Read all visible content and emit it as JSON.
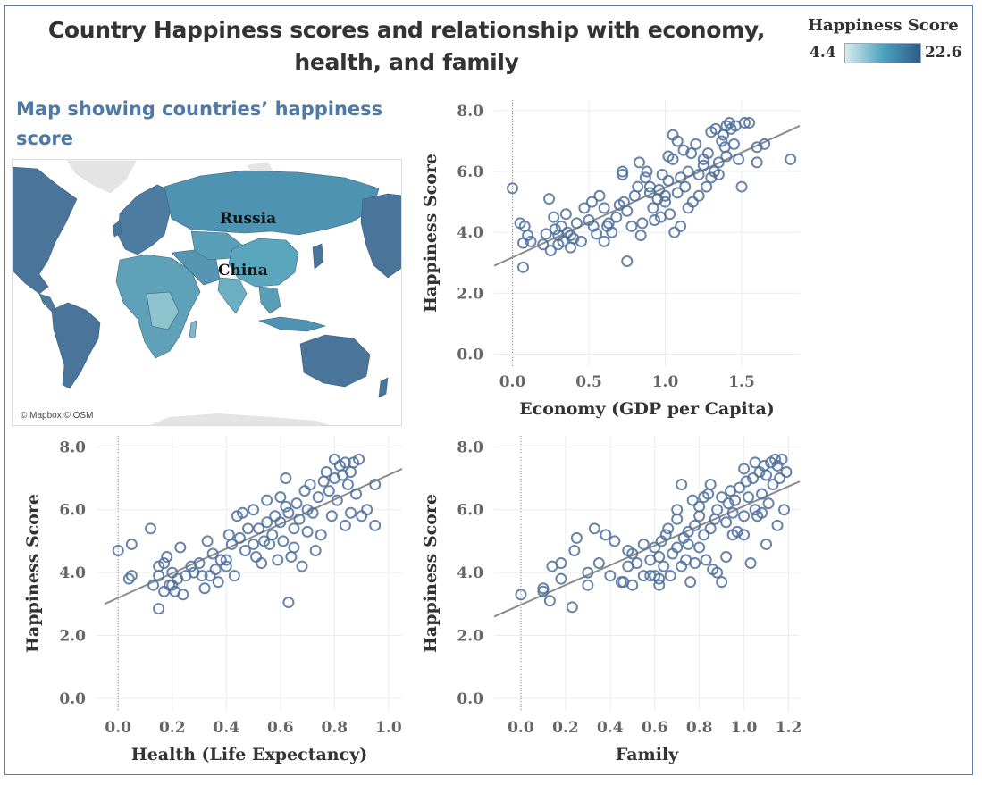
{
  "dashboard": {
    "title": "Country Happiness scores and relationship with economy, health, and family"
  },
  "legend": {
    "title": "Happiness Score",
    "min_label": "4.4",
    "max_label": "22.6",
    "color_low": "#d6ecec",
    "color_mid": "#4ea3bf",
    "color_high": "#2e5a87"
  },
  "map": {
    "title": "Map showing countries’ happiness score",
    "labels": {
      "russia": "Russia",
      "china": "China"
    },
    "credit": "© Mapbox © OSM",
    "land_color": "#4a7499",
    "water_color": "#ffffff",
    "no_data_color": "#e4e4e4"
  },
  "colors": {
    "point_stroke": "#4e6f9c",
    "trend_line": "#8c8c8c",
    "grid": "#ececec",
    "zero_line": "#888888"
  },
  "chart_data": [
    {
      "type": "scatter",
      "id": "economy",
      "xlabel": "Economy (GDP per Capita)",
      "ylabel": "Happiness Score",
      "xlim": [
        -0.12,
        1.88
      ],
      "ylim": [
        -0.4,
        8.35
      ],
      "xticks": [
        0.0,
        0.5,
        1.0,
        1.5
      ],
      "yticks": [
        0.0,
        2.0,
        4.0,
        6.0,
        8.0
      ],
      "xtick_labels": [
        "0.0",
        "0.5",
        "1.0",
        "1.5"
      ],
      "ytick_labels": [
        "0.0",
        "2.0",
        "4.0",
        "6.0",
        "8.0"
      ],
      "trend": [
        [
          -0.12,
          2.9
        ],
        [
          1.88,
          7.5
        ]
      ],
      "points": [
        [
          0.0,
          5.45
        ],
        [
          0.05,
          4.3
        ],
        [
          0.07,
          3.65
        ],
        [
          0.07,
          2.85
        ],
        [
          0.08,
          4.2
        ],
        [
          0.1,
          3.9
        ],
        [
          0.12,
          3.7
        ],
        [
          0.2,
          3.6
        ],
        [
          0.22,
          3.95
        ],
        [
          0.24,
          5.1
        ],
        [
          0.25,
          3.4
        ],
        [
          0.27,
          4.5
        ],
        [
          0.28,
          4.1
        ],
        [
          0.3,
          3.6
        ],
        [
          0.3,
          3.9
        ],
        [
          0.32,
          4.2
        ],
        [
          0.33,
          3.7
        ],
        [
          0.35,
          4.6
        ],
        [
          0.36,
          4.0
        ],
        [
          0.38,
          3.5
        ],
        [
          0.38,
          3.9
        ],
        [
          0.4,
          3.8
        ],
        [
          0.42,
          4.3
        ],
        [
          0.45,
          3.7
        ],
        [
          0.47,
          4.8
        ],
        [
          0.5,
          4.4
        ],
        [
          0.52,
          5.0
        ],
        [
          0.53,
          4.2
        ],
        [
          0.55,
          3.95
        ],
        [
          0.57,
          5.2
        ],
        [
          0.6,
          3.7
        ],
        [
          0.6,
          4.8
        ],
        [
          0.62,
          4.2
        ],
        [
          0.63,
          4.3
        ],
        [
          0.65,
          4.0
        ],
        [
          0.68,
          4.5
        ],
        [
          0.7,
          4.9
        ],
        [
          0.72,
          5.9
        ],
        [
          0.72,
          6.0
        ],
        [
          0.73,
          5.0
        ],
        [
          0.75,
          4.7
        ],
        [
          0.75,
          3.05
        ],
        [
          0.78,
          4.2
        ],
        [
          0.8,
          5.2
        ],
        [
          0.82,
          5.5
        ],
        [
          0.83,
          6.3
        ],
        [
          0.84,
          3.9
        ],
        [
          0.85,
          4.3
        ],
        [
          0.87,
          5.8
        ],
        [
          0.88,
          6.0
        ],
        [
          0.9,
          5.3
        ],
        [
          0.9,
          5.5
        ],
        [
          0.92,
          4.8
        ],
        [
          0.93,
          4.4
        ],
        [
          0.95,
          5.1
        ],
        [
          0.96,
          5.4
        ],
        [
          0.97,
          4.5
        ],
        [
          0.98,
          5.9
        ],
        [
          1.0,
          5.2
        ],
        [
          1.0,
          5.0
        ],
        [
          1.02,
          5.7
        ],
        [
          1.02,
          6.5
        ],
        [
          1.03,
          4.6
        ],
        [
          1.05,
          7.2
        ],
        [
          1.05,
          6.4
        ],
        [
          1.06,
          4.0
        ],
        [
          1.08,
          5.3
        ],
        [
          1.08,
          7.0
        ],
        [
          1.1,
          5.8
        ],
        [
          1.1,
          4.2
        ],
        [
          1.12,
          6.7
        ],
        [
          1.13,
          5.5
        ],
        [
          1.15,
          6.0
        ],
        [
          1.15,
          4.8
        ],
        [
          1.17,
          6.6
        ],
        [
          1.18,
          5.0
        ],
        [
          1.2,
          6.9
        ],
        [
          1.22,
          5.9
        ],
        [
          1.22,
          5.2
        ],
        [
          1.25,
          6.2
        ],
        [
          1.25,
          6.4
        ],
        [
          1.27,
          5.5
        ],
        [
          1.28,
          6.6
        ],
        [
          1.3,
          5.8
        ],
        [
          1.3,
          7.3
        ],
        [
          1.32,
          6.0
        ],
        [
          1.33,
          7.4
        ],
        [
          1.35,
          6.3
        ],
        [
          1.35,
          5.9
        ],
        [
          1.37,
          7.0
        ],
        [
          1.38,
          7.2
        ],
        [
          1.39,
          6.8
        ],
        [
          1.4,
          7.5
        ],
        [
          1.4,
          6.5
        ],
        [
          1.42,
          7.6
        ],
        [
          1.43,
          7.4
        ],
        [
          1.45,
          6.9
        ],
        [
          1.46,
          7.5
        ],
        [
          1.48,
          6.4
        ],
        [
          1.5,
          5.5
        ],
        [
          1.52,
          7.6
        ],
        [
          1.55,
          7.6
        ],
        [
          1.6,
          6.3
        ],
        [
          1.6,
          6.8
        ],
        [
          1.65,
          6.9
        ],
        [
          1.82,
          6.4
        ]
      ]
    },
    {
      "type": "scatter",
      "id": "health",
      "xlabel": "Health (Life Expectancy)",
      "ylabel": "Happiness Score",
      "xlim": [
        -0.08,
        1.05
      ],
      "ylim": [
        -0.4,
        8.35
      ],
      "xticks": [
        0.0,
        0.2,
        0.4,
        0.6,
        0.8,
        1.0
      ],
      "yticks": [
        0.0,
        2.0,
        4.0,
        6.0,
        8.0
      ],
      "xtick_labels": [
        "0.0",
        "0.2",
        "0.4",
        "0.6",
        "0.8",
        "1.0"
      ],
      "ytick_labels": [
        "0.0",
        "2.0",
        "4.0",
        "6.0",
        "8.0"
      ],
      "trend": [
        [
          -0.05,
          3.0
        ],
        [
          1.05,
          7.3
        ]
      ],
      "points": [
        [
          0.0,
          4.7
        ],
        [
          0.04,
          3.8
        ],
        [
          0.05,
          4.9
        ],
        [
          0.05,
          3.9
        ],
        [
          0.12,
          5.4
        ],
        [
          0.13,
          3.6
        ],
        [
          0.15,
          2.85
        ],
        [
          0.15,
          3.9
        ],
        [
          0.15,
          4.2
        ],
        [
          0.17,
          4.3
        ],
        [
          0.17,
          3.4
        ],
        [
          0.18,
          4.5
        ],
        [
          0.19,
          3.6
        ],
        [
          0.2,
          4.0
        ],
        [
          0.2,
          3.6
        ],
        [
          0.21,
          3.4
        ],
        [
          0.22,
          3.8
        ],
        [
          0.23,
          4.8
        ],
        [
          0.24,
          3.3
        ],
        [
          0.25,
          3.9
        ],
        [
          0.27,
          4.2
        ],
        [
          0.28,
          4.0
        ],
        [
          0.3,
          4.3
        ],
        [
          0.31,
          3.9
        ],
        [
          0.32,
          3.5
        ],
        [
          0.33,
          5.0
        ],
        [
          0.34,
          3.9
        ],
        [
          0.35,
          4.6
        ],
        [
          0.36,
          4.1
        ],
        [
          0.37,
          3.7
        ],
        [
          0.38,
          4.4
        ],
        [
          0.4,
          4.2
        ],
        [
          0.4,
          4.4
        ],
        [
          0.41,
          5.2
        ],
        [
          0.42,
          4.9
        ],
        [
          0.43,
          3.9
        ],
        [
          0.44,
          5.8
        ],
        [
          0.45,
          5.1
        ],
        [
          0.46,
          5.9
        ],
        [
          0.47,
          4.7
        ],
        [
          0.48,
          5.4
        ],
        [
          0.5,
          6.0
        ],
        [
          0.5,
          4.9
        ],
        [
          0.51,
          4.5
        ],
        [
          0.52,
          5.4
        ],
        [
          0.53,
          4.3
        ],
        [
          0.54,
          5.0
        ],
        [
          0.55,
          5.6
        ],
        [
          0.55,
          6.3
        ],
        [
          0.56,
          4.9
        ],
        [
          0.57,
          5.2
        ],
        [
          0.58,
          5.8
        ],
        [
          0.59,
          4.4
        ],
        [
          0.6,
          5.6
        ],
        [
          0.6,
          6.4
        ],
        [
          0.61,
          5.0
        ],
        [
          0.62,
          6.1
        ],
        [
          0.62,
          7.0
        ],
        [
          0.63,
          5.9
        ],
        [
          0.63,
          3.05
        ],
        [
          0.64,
          4.5
        ],
        [
          0.65,
          4.8
        ],
        [
          0.65,
          5.4
        ],
        [
          0.66,
          6.2
        ],
        [
          0.67,
          5.7
        ],
        [
          0.68,
          4.2
        ],
        [
          0.69,
          6.6
        ],
        [
          0.7,
          5.3
        ],
        [
          0.7,
          6.0
        ],
        [
          0.71,
          6.8
        ],
        [
          0.72,
          5.9
        ],
        [
          0.73,
          4.7
        ],
        [
          0.74,
          6.4
        ],
        [
          0.75,
          5.2
        ],
        [
          0.76,
          6.9
        ],
        [
          0.77,
          7.2
        ],
        [
          0.78,
          6.6
        ],
        [
          0.79,
          5.8
        ],
        [
          0.8,
          7.6
        ],
        [
          0.8,
          7.0
        ],
        [
          0.81,
          6.3
        ],
        [
          0.82,
          7.4
        ],
        [
          0.83,
          7.1
        ],
        [
          0.84,
          5.5
        ],
        [
          0.84,
          7.5
        ],
        [
          0.85,
          6.8
        ],
        [
          0.86,
          5.9
        ],
        [
          0.86,
          7.2
        ],
        [
          0.87,
          7.5
        ],
        [
          0.88,
          6.5
        ],
        [
          0.89,
          7.6
        ],
        [
          0.9,
          5.8
        ],
        [
          0.92,
          6.0
        ],
        [
          0.95,
          6.8
        ],
        [
          0.95,
          5.5
        ]
      ]
    },
    {
      "type": "scatter",
      "id": "family",
      "xlabel": "Family",
      "ylabel": "Happiness Score",
      "xlim": [
        -0.12,
        1.25
      ],
      "ylim": [
        -0.4,
        8.35
      ],
      "xticks": [
        0.0,
        0.2,
        0.4,
        0.6,
        0.8,
        1.0,
        1.2
      ],
      "yticks": [
        0.0,
        2.0,
        4.0,
        6.0,
        8.0
      ],
      "xtick_labels": [
        "0.0",
        "0.2",
        "0.4",
        "0.6",
        "0.8",
        "1.0",
        "1.2"
      ],
      "ytick_labels": [
        "0.0",
        "2.0",
        "4.0",
        "6.0",
        "8.0"
      ],
      "trend": [
        [
          -0.12,
          2.6
        ],
        [
          1.25,
          6.9
        ]
      ],
      "points": [
        [
          0.0,
          3.3
        ],
        [
          0.1,
          3.5
        ],
        [
          0.1,
          3.4
        ],
        [
          0.13,
          3.1
        ],
        [
          0.14,
          4.2
        ],
        [
          0.18,
          4.3
        ],
        [
          0.18,
          3.8
        ],
        [
          0.23,
          2.9
        ],
        [
          0.24,
          4.7
        ],
        [
          0.25,
          5.1
        ],
        [
          0.3,
          3.6
        ],
        [
          0.3,
          4.0
        ],
        [
          0.33,
          5.4
        ],
        [
          0.35,
          4.3
        ],
        [
          0.38,
          5.2
        ],
        [
          0.4,
          3.9
        ],
        [
          0.42,
          5.0
        ],
        [
          0.45,
          3.7
        ],
        [
          0.46,
          3.7
        ],
        [
          0.48,
          4.2
        ],
        [
          0.48,
          4.7
        ],
        [
          0.5,
          3.6
        ],
        [
          0.5,
          4.6
        ],
        [
          0.52,
          4.3
        ],
        [
          0.55,
          4.9
        ],
        [
          0.55,
          3.9
        ],
        [
          0.58,
          4.4
        ],
        [
          0.58,
          3.9
        ],
        [
          0.6,
          4.8
        ],
        [
          0.6,
          3.9
        ],
        [
          0.62,
          3.6
        ],
        [
          0.62,
          4.5
        ],
        [
          0.62,
          3.8
        ],
        [
          0.63,
          5.0
        ],
        [
          0.64,
          4.2
        ],
        [
          0.65,
          5.2
        ],
        [
          0.66,
          5.4
        ],
        [
          0.67,
          3.9
        ],
        [
          0.68,
          4.6
        ],
        [
          0.7,
          4.8
        ],
        [
          0.7,
          5.7
        ],
        [
          0.7,
          6.0
        ],
        [
          0.72,
          6.8
        ],
        [
          0.72,
          4.2
        ],
        [
          0.73,
          5.1
        ],
        [
          0.74,
          4.4
        ],
        [
          0.75,
          4.9
        ],
        [
          0.75,
          5.3
        ],
        [
          0.76,
          3.7
        ],
        [
          0.77,
          6.3
        ],
        [
          0.78,
          4.3
        ],
        [
          0.78,
          5.5
        ],
        [
          0.8,
          5.8
        ],
        [
          0.8,
          4.8
        ],
        [
          0.8,
          6.1
        ],
        [
          0.82,
          6.4
        ],
        [
          0.82,
          5.2
        ],
        [
          0.83,
          4.4
        ],
        [
          0.84,
          6.5
        ],
        [
          0.85,
          5.4
        ],
        [
          0.85,
          6.8
        ],
        [
          0.86,
          4.1
        ],
        [
          0.87,
          5.7
        ],
        [
          0.88,
          6.0
        ],
        [
          0.88,
          4.0
        ],
        [
          0.9,
          6.4
        ],
        [
          0.9,
          3.7
        ],
        [
          0.92,
          5.6
        ],
        [
          0.92,
          4.5
        ],
        [
          0.93,
          6.2
        ],
        [
          0.94,
          6.6
        ],
        [
          0.95,
          5.9
        ],
        [
          0.95,
          5.2
        ],
        [
          0.96,
          6.3
        ],
        [
          0.97,
          5.3
        ],
        [
          0.98,
          6.7
        ],
        [
          1.0,
          7.3
        ],
        [
          1.0,
          5.8
        ],
        [
          1.0,
          5.2
        ],
        [
          1.01,
          6.9
        ],
        [
          1.02,
          6.4
        ],
        [
          1.03,
          4.3
        ],
        [
          1.04,
          7.0
        ],
        [
          1.05,
          7.5
        ],
        [
          1.05,
          6.0
        ],
        [
          1.06,
          5.8
        ],
        [
          1.07,
          7.2
        ],
        [
          1.08,
          6.5
        ],
        [
          1.08,
          5.9
        ],
        [
          1.09,
          7.4
        ],
        [
          1.1,
          7.1
        ],
        [
          1.1,
          4.9
        ],
        [
          1.11,
          6.2
        ],
        [
          1.12,
          7.5
        ],
        [
          1.13,
          6.8
        ],
        [
          1.14,
          7.6
        ],
        [
          1.15,
          7.4
        ],
        [
          1.15,
          5.5
        ],
        [
          1.16,
          7.0
        ],
        [
          1.17,
          7.6
        ],
        [
          1.18,
          6.0
        ],
        [
          1.19,
          7.2
        ]
      ]
    }
  ]
}
